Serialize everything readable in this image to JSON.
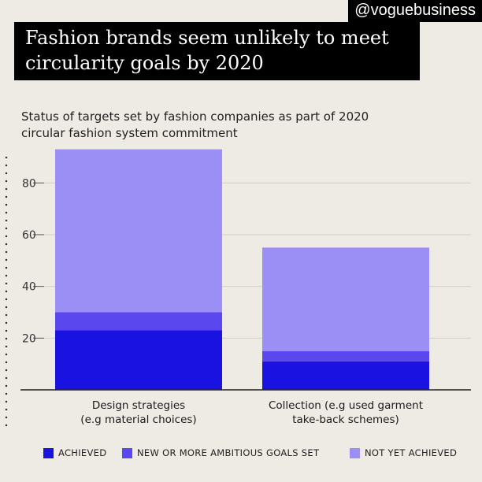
{
  "handle": "@voguebusiness",
  "title": {
    "line1": "Fashion brands seem unlikely to meet",
    "line2": "circularity goals by 2020"
  },
  "subtitle": {
    "line1": "Status of targets set by fashion companies as part of 2020",
    "line2": "circular fashion system commitment"
  },
  "colors": {
    "achieved": "#1a12e0",
    "new_goals": "#5a47ee",
    "not_yet": "#9b8ff5"
  },
  "legend": {
    "achieved": "ACHIEVED",
    "new_goals": "NEW OR MORE AMBITIOUS GOALS SET",
    "not_yet": "NOT YET ACHIEVED"
  },
  "chart_data": {
    "type": "bar",
    "stacked": true,
    "categories": [
      [
        "Design strategies",
        "(e.g material choices)"
      ],
      [
        "Collection (e.g used garment",
        "take-back schemes)"
      ]
    ],
    "series": [
      {
        "name": "ACHIEVED",
        "values": [
          23,
          11
        ]
      },
      {
        "name": "NEW OR MORE AMBITIOUS GOALS SET",
        "values": [
          7,
          4
        ]
      },
      {
        "name": "NOT YET ACHIEVED",
        "values": [
          63,
          40
        ]
      }
    ],
    "yticks": [
      20,
      40,
      60,
      80
    ],
    "ylim": [
      0,
      95
    ],
    "grid": true
  }
}
